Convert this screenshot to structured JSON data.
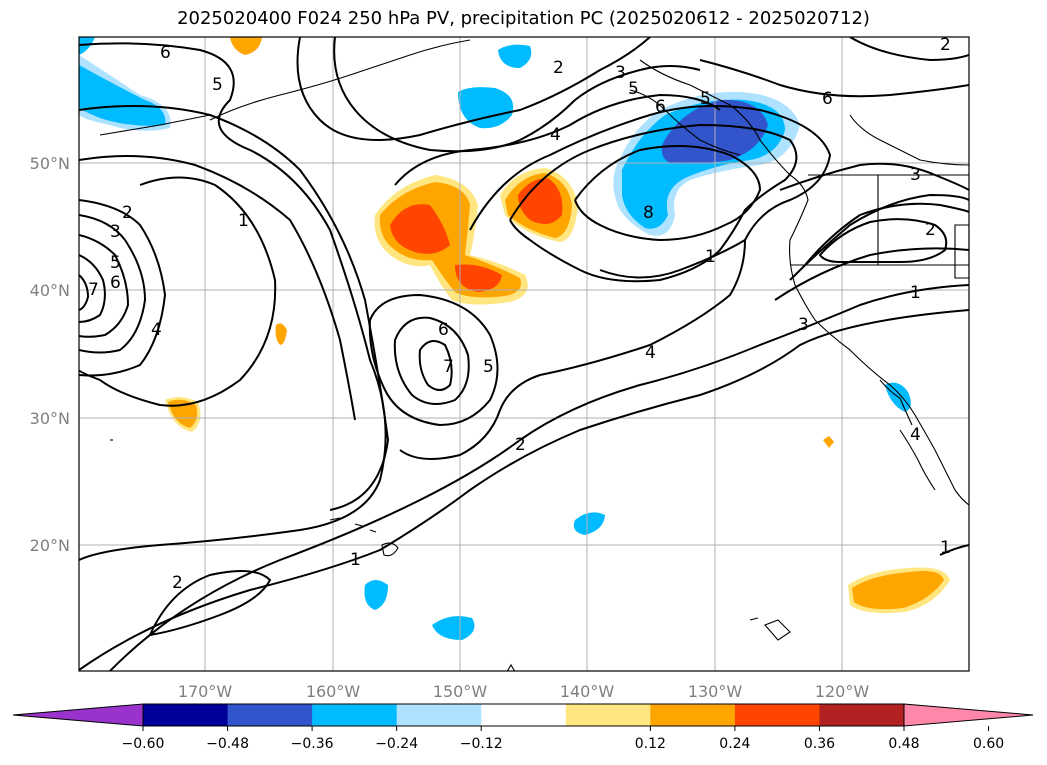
{
  "title": "2025020400 F024 250 hPa PV, precipitation PC (2025020612 - 2025020712)",
  "lon_labels": [
    "170°W",
    "160°W",
    "150°W",
    "140°W",
    "130°W",
    "120°W"
  ],
  "lat_labels": [
    "50°N",
    "40°N",
    "30°N",
    "20°N"
  ],
  "colorbar": {
    "ticks": [
      "−0.60",
      "−0.48",
      "−0.36",
      "−0.24",
      "−0.12",
      "0.12",
      "0.24",
      "0.36",
      "0.48",
      "0.60"
    ],
    "colors": [
      "#9933cc",
      "#000099",
      "#3355cc",
      "#00bbff",
      "#aee2ff",
      "#ffffff",
      "#ffe680",
      "#ffa500",
      "#ff4500",
      "#b22222",
      "#ff88aa"
    ]
  },
  "contour_labels": [
    "6",
    "5",
    "1",
    "2",
    "3",
    "4",
    "5",
    "6",
    "7",
    "8",
    "2",
    "3",
    "5",
    "6",
    "4",
    "1",
    "6",
    "7",
    "5",
    "2",
    "1",
    "2",
    "3",
    "4",
    "3",
    "2",
    "1",
    "6",
    "5",
    "4",
    "1",
    "2"
  ]
}
